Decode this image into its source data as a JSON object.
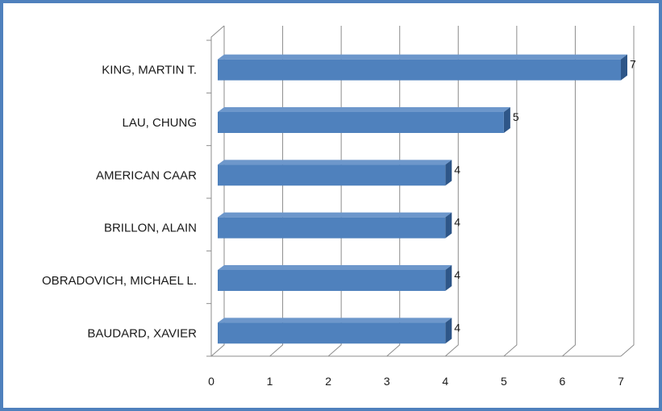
{
  "chart_data": {
    "type": "bar",
    "orientation": "horizontal",
    "style": "3d-clustered",
    "categories": [
      "KING, MARTIN T.",
      "LAU, CHUNG",
      "AMERICAN CAAR",
      "BRILLON, ALAIN",
      "OBRADOVICH, MICHAEL L.",
      "BAUDARD, XAVIER"
    ],
    "values": [
      7,
      5,
      4,
      4,
      4,
      4
    ],
    "data_labels": [
      "7",
      "5",
      "4",
      "4",
      "4",
      "4"
    ],
    "x_ticks": [
      "0",
      "1",
      "2",
      "3",
      "4",
      "5",
      "6",
      "7"
    ],
    "xlim": [
      0,
      7
    ],
    "title": "",
    "xlabel": "",
    "ylabel": "",
    "grid": true,
    "legend": "none",
    "colors": {
      "bar_front": "#4f81bd",
      "bar_top": "#6d97cb",
      "bar_side": "#2e5688",
      "grid": "#8c8c8c",
      "border": "#4f81bd"
    }
  }
}
